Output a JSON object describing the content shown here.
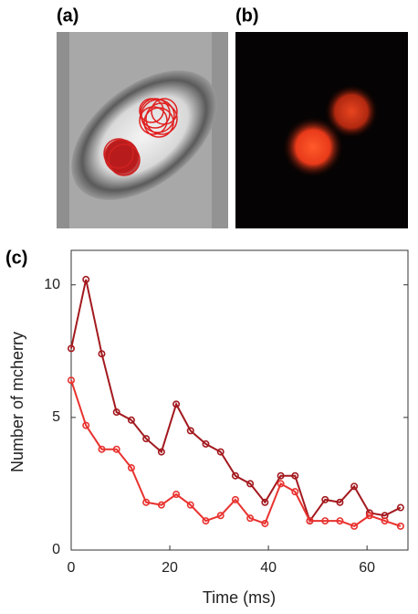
{
  "panel_labels": [
    "(a)",
    "(b)"
  ],
  "chart_data": {
    "type": "line",
    "panel_label": "(c)",
    "x_label": "Time (ms)",
    "y_label": "Number of mcherry",
    "x": [
      0,
      3,
      6.2,
      9.2,
      12.2,
      15.2,
      18.3,
      21.3,
      24.2,
      27.3,
      30.3,
      33.3,
      36.3,
      39.3,
      42.5,
      45.4,
      48.4,
      51.5,
      54.5,
      57.4,
      60.5,
      63.6,
      66.8
    ],
    "series": [
      {
        "color": "#a3191e",
        "values": [
          7.6,
          10.2,
          7.4,
          5.2,
          4.9,
          4.2,
          3.7,
          5.5,
          4.5,
          4.0,
          3.7,
          2.8,
          2.5,
          1.8,
          2.8,
          2.8,
          1.1,
          1.9,
          1.8,
          2.4,
          1.4,
          1.3,
          1.6
        ]
      },
      {
        "color": "#e8322f",
        "values": [
          6.4,
          4.7,
          3.8,
          3.8,
          3.1,
          1.8,
          1.7,
          2.1,
          1.7,
          1.1,
          1.3,
          1.9,
          1.2,
          1.0,
          2.5,
          2.2,
          1.1,
          1.1,
          1.1,
          0.9,
          1.3,
          1.1,
          0.9
        ]
      }
    ],
    "xlim": [
      0,
      68.3
    ],
    "ylim": [
      0,
      11.3
    ],
    "xticks": [
      0,
      20,
      40,
      60
    ],
    "yticks": [
      0,
      5,
      10
    ]
  }
}
